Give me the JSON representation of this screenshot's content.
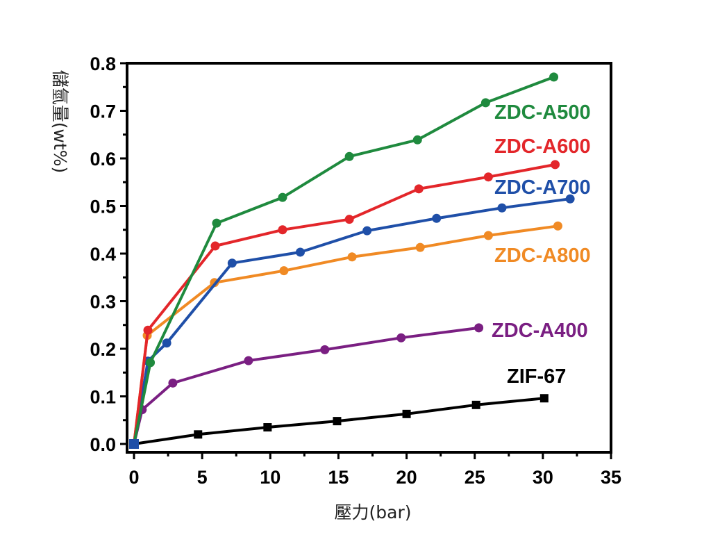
{
  "chart_data": {
    "type": "line",
    "title": "",
    "xlabel": "壓力(bar)",
    "ylabel": "儲氫量(wt%)",
    "xlim": [
      0,
      35
    ],
    "ylim": [
      0.0,
      0.8
    ],
    "xticks": [
      "0",
      "5",
      "10",
      "15",
      "20",
      "25",
      "30",
      "35"
    ],
    "yticks": [
      "0.0",
      "0.1",
      "0.2",
      "0.3",
      "0.4",
      "0.5",
      "0.6",
      "0.7",
      "0.8"
    ],
    "grid": false,
    "legend": "inline labels at right",
    "series": [
      {
        "name": "ZIF-67",
        "color": "#000000",
        "marker": "square",
        "x": [
          0,
          4.7,
          9.8,
          14.9,
          20.0,
          25.1,
          30.1
        ],
        "y": [
          0.0,
          0.02,
          0.035,
          0.048,
          0.063,
          0.082,
          0.096
        ]
      },
      {
        "name": "ZDC-A400",
        "color": "#7a1f82",
        "marker": "circle",
        "x": [
          0,
          0.6,
          2.85,
          8.4,
          14.0,
          19.6,
          25.3
        ],
        "y": [
          0.0,
          0.072,
          0.128,
          0.175,
          0.198,
          0.223,
          0.244
        ]
      },
      {
        "name": "ZDC-A800",
        "color": "#f08a24",
        "marker": "circle",
        "x": [
          0,
          0.97,
          5.9,
          11.0,
          16.0,
          21.0,
          26.0,
          31.1
        ],
        "y": [
          0.0,
          0.228,
          0.339,
          0.364,
          0.393,
          0.413,
          0.438,
          0.458
        ]
      },
      {
        "name": "ZDC-A700",
        "color": "#1f4fa8",
        "marker": "circle",
        "x": [
          0,
          1.02,
          2.4,
          7.2,
          12.2,
          17.1,
          22.2,
          27.0,
          32.0
        ],
        "y": [
          0.0,
          0.174,
          0.212,
          0.38,
          0.403,
          0.448,
          0.474,
          0.496,
          0.515
        ]
      },
      {
        "name": "ZDC-A600",
        "color": "#e3262a",
        "marker": "circle",
        "x": [
          0,
          1.02,
          5.96,
          10.9,
          15.8,
          20.9,
          26.0,
          30.9
        ],
        "y": [
          0.0,
          0.239,
          0.416,
          0.45,
          0.472,
          0.536,
          0.561,
          0.587
        ]
      },
      {
        "name": "ZDC-A500",
        "color": "#1f8a3e",
        "marker": "circle",
        "x": [
          0,
          1.2,
          6.06,
          10.9,
          15.8,
          20.8,
          25.8,
          30.8
        ],
        "y": [
          0.0,
          0.171,
          0.464,
          0.518,
          0.604,
          0.639,
          0.717,
          0.771
        ]
      }
    ]
  }
}
